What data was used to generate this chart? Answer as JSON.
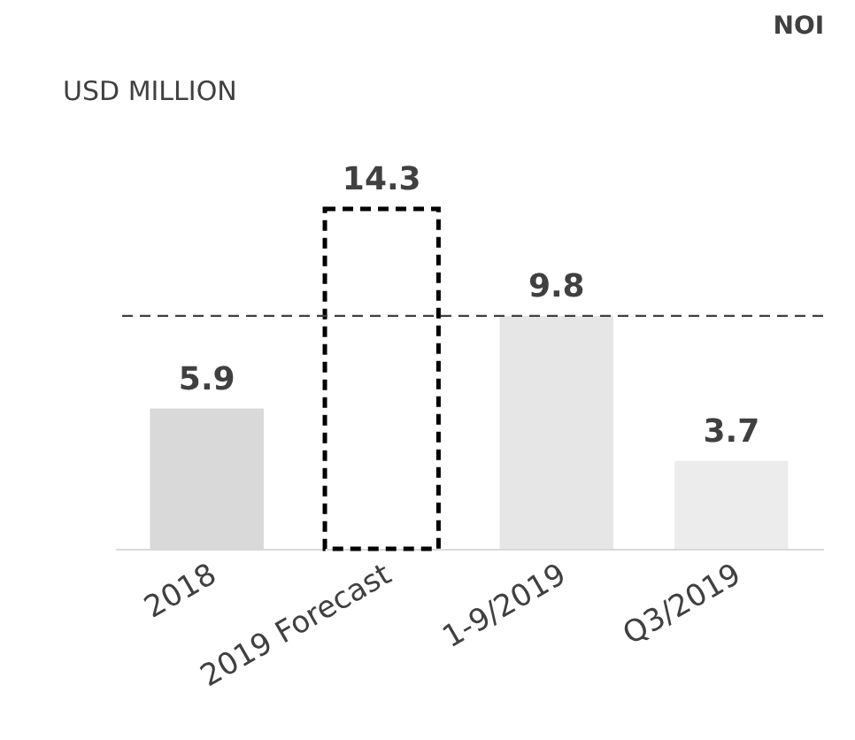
{
  "chart_data": {
    "type": "bar",
    "title": "NOI",
    "ylabel": "USD MILLION",
    "categories": [
      "2018",
      "2019 Forecast",
      "1-9/2019",
      "Q3/2019"
    ],
    "series": [
      {
        "colors": [
          "#d9d9d9",
          null,
          "#e6e6e6",
          "#ececec"
        ],
        "values": [
          5.9,
          null,
          9.8,
          3.7
        ]
      },
      {
        "color": "#000000",
        "line_style": "dashed",
        "values": [
          null,
          14.3,
          null,
          null
        ]
      }
    ],
    "data_labels": true,
    "ref_lines": [
      {
        "axis": "y",
        "value": 9.8,
        "label": null,
        "color": "#404040",
        "line_style": "dashed"
      }
    ],
    "tick_labels": "x"
  }
}
